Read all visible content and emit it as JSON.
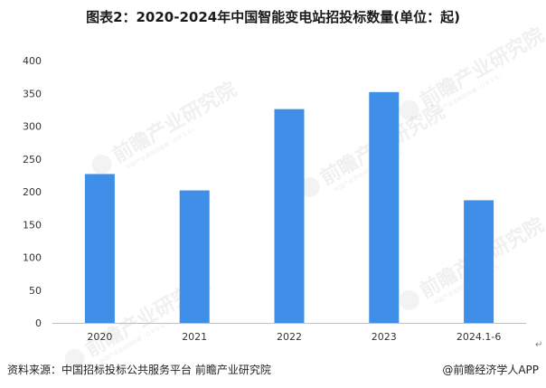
{
  "title": "图表2：2020-2024年中国智能变电站招投标数量(单位：起)",
  "source": "资料来源：中国招标投标公共服务平台 前瞻产业研究院",
  "brand": "@前瞻经济学人APP",
  "watermark": {
    "text": "前瞻产业研究院",
    "sub": "中国产业咨询领导者 · Q B S B I",
    "color": "#9a9a9a"
  },
  "colors": {
    "bar": "#3f8fe8",
    "axis": "#bfbfbf"
  },
  "chart_data": {
    "type": "bar",
    "title": "图表2：2020-2024年中国智能变电站招投标数量(单位：起)",
    "categories": [
      "2020",
      "2021",
      "2022",
      "2023",
      "2024.1-6"
    ],
    "values": [
      227,
      202,
      326,
      352,
      187
    ],
    "xlabel": "",
    "ylabel": "",
    "ylim": [
      0,
      400
    ],
    "yticks": [
      0,
      50,
      100,
      150,
      200,
      250,
      300,
      350,
      400
    ],
    "grid": false,
    "legend": "none"
  }
}
